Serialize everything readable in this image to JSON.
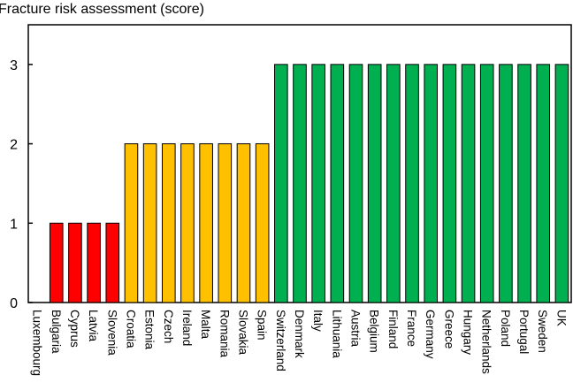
{
  "chart_data": {
    "type": "bar",
    "title": "Fracture risk assessment (score)",
    "xlabel": "",
    "ylabel": "",
    "ylim": [
      0,
      3.5
    ],
    "yticks": [
      0,
      1,
      2,
      3
    ],
    "categories": [
      "Luxembourg",
      "Bulgaria",
      "Cyprus",
      "Latvia",
      "Slovenia",
      "Croatia",
      "Estonia",
      "Czech",
      "Ireland",
      "Malta",
      "Romania",
      "Slovakia",
      "Spain",
      "Switzerland",
      "Denmark",
      "Italy",
      "Lithuania",
      "Austria",
      "Belgium",
      "Finland",
      "France",
      "Germany",
      "Greece",
      "Hungary",
      "Netherlands",
      "Poland",
      "Portugal",
      "Sweden",
      "UK"
    ],
    "values": [
      0,
      1,
      1,
      1,
      1,
      2,
      2,
      2,
      2,
      2,
      2,
      2,
      2,
      3,
      3,
      3,
      3,
      3,
      3,
      3,
      3,
      3,
      3,
      3,
      3,
      3,
      3,
      3,
      3
    ],
    "colors": {
      "1": "#ff0000",
      "2": "#ffc000",
      "3": "#00b050"
    }
  }
}
